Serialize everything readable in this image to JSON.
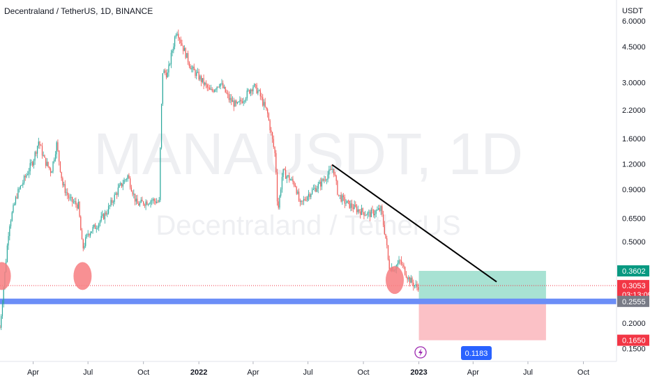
{
  "chart_data": {
    "type": "candlestick",
    "title": "Decentraland / TetherUS, 1D, BINANCE",
    "watermark": {
      "symbol": "MANAUSDT, 1D",
      "name": "Decentraland / TetherUS"
    },
    "y_axis": {
      "unit_label": "USDT",
      "scale": "log",
      "range": [
        0.13,
        7.6
      ],
      "ticks": [
        "6.0000",
        "4.5000",
        "3.0000",
        "2.2000",
        "1.6000",
        "1.2000",
        "0.9000",
        "0.6500",
        "0.5000",
        "0.3602",
        "0.3053",
        "0.2555",
        "0.2000",
        "0.1650",
        "0.1500"
      ]
    },
    "x_axis": {
      "range": [
        "2021-02-05",
        "2023-11-25"
      ],
      "ticks": [
        {
          "label": "Apr",
          "date": "2021-04-01",
          "bold": false
        },
        {
          "label": "Jul",
          "date": "2021-07-01",
          "bold": false
        },
        {
          "label": "Oct",
          "date": "2021-10-01",
          "bold": false
        },
        {
          "label": "2022",
          "date": "2022-01-01",
          "bold": true
        },
        {
          "label": "Apr",
          "date": "2022-04-01",
          "bold": false
        },
        {
          "label": "Jul",
          "date": "2022-07-01",
          "bold": false
        },
        {
          "label": "Oct",
          "date": "2022-10-01",
          "bold": false
        },
        {
          "label": "2023",
          "date": "2023-01-01",
          "bold": true
        },
        {
          "label": "Apr",
          "date": "2023-04-01",
          "bold": false
        },
        {
          "label": "Jul",
          "date": "2023-07-01",
          "bold": false
        },
        {
          "label": "Oct",
          "date": "2023-10-01",
          "bold": false
        }
      ],
      "cursor_label": "0.1183"
    },
    "price_path": [
      [
        "2021-02-05",
        0.19
      ],
      [
        "2021-02-20",
        0.6
      ],
      [
        "2021-03-05",
        0.85
      ],
      [
        "2021-03-20",
        1.05
      ],
      [
        "2021-04-01",
        1.25
      ],
      [
        "2021-04-10",
        1.55
      ],
      [
        "2021-04-20",
        1.25
      ],
      [
        "2021-05-01",
        1.1
      ],
      [
        "2021-05-10",
        1.5
      ],
      [
        "2021-05-20",
        0.95
      ],
      [
        "2021-06-01",
        0.8
      ],
      [
        "2021-06-15",
        0.75
      ],
      [
        "2021-06-22",
        0.46
      ],
      [
        "2021-07-01",
        0.55
      ],
      [
        "2021-07-15",
        0.6
      ],
      [
        "2021-08-01",
        0.7
      ],
      [
        "2021-08-20",
        0.9
      ],
      [
        "2021-09-05",
        1.05
      ],
      [
        "2021-09-20",
        0.76
      ],
      [
        "2021-10-15",
        0.8
      ],
      [
        "2021-10-27",
        0.78
      ],
      [
        "2021-10-30",
        1.9
      ],
      [
        "2021-11-02",
        3.4
      ],
      [
        "2021-11-10",
        3.3
      ],
      [
        "2021-11-25",
        5.5
      ],
      [
        "2021-12-05",
        4.5
      ],
      [
        "2021-12-20",
        3.5
      ],
      [
        "2022-01-01",
        3.2
      ],
      [
        "2022-01-20",
        2.7
      ],
      [
        "2022-02-05",
        3.0
      ],
      [
        "2022-02-20",
        2.5
      ],
      [
        "2022-03-05",
        2.3
      ],
      [
        "2022-03-20",
        2.6
      ],
      [
        "2022-04-01",
        2.9
      ],
      [
        "2022-04-10",
        2.7
      ],
      [
        "2022-04-25",
        2.1
      ],
      [
        "2022-05-08",
        1.3
      ],
      [
        "2022-05-12",
        0.7
      ],
      [
        "2022-05-20",
        1.1
      ],
      [
        "2022-06-10",
        0.95
      ],
      [
        "2022-06-18",
        0.75
      ],
      [
        "2022-07-01",
        0.85
      ],
      [
        "2022-07-20",
        0.95
      ],
      [
        "2022-08-01",
        1.05
      ],
      [
        "2022-08-12",
        1.15
      ],
      [
        "2022-08-20",
        0.85
      ],
      [
        "2022-09-01",
        0.78
      ],
      [
        "2022-09-20",
        0.72
      ],
      [
        "2022-10-10",
        0.68
      ],
      [
        "2022-10-30",
        0.72
      ],
      [
        "2022-11-08",
        0.5
      ],
      [
        "2022-11-12",
        0.38
      ],
      [
        "2022-11-20",
        0.37
      ],
      [
        "2022-12-01",
        0.4
      ],
      [
        "2022-12-15",
        0.33
      ],
      [
        "2022-12-28",
        0.3
      ],
      [
        "2023-01-01",
        0.305
      ]
    ],
    "horizontal_levels": [
      {
        "value": 0.3053,
        "label": "0.3053",
        "countdown": "03:13:09",
        "style": "dotted",
        "color": "#f23645"
      },
      {
        "value": 0.2555,
        "label": "0.2555",
        "style": "band",
        "color": "#6b8ef7"
      }
    ],
    "long_position": {
      "start": "2023-01-01",
      "end": "2023-07-31",
      "entry": 0.2555,
      "target": 0.3602,
      "stop": 0.165,
      "target_label": "0.3602",
      "stop_label": "0.1650",
      "profit_color": "#a8e2d3",
      "loss_color": "#fbc1c6"
    },
    "trendline": {
      "from": [
        "2022-08-10",
        1.19
      ],
      "to": [
        "2023-05-10",
        0.3185
      ],
      "color": "#000000"
    },
    "highlight_circles": [
      {
        "date": "2021-02-08",
        "value": 0.34
      },
      {
        "date": "2021-06-22",
        "value": 0.34
      },
      {
        "date": "2022-11-22",
        "value": 0.325
      }
    ],
    "colors": {
      "up": "#26a69a",
      "down": "#ef5350",
      "target_tag": "#089981",
      "price_tag": "#f23645",
      "level_tag": "#787b86",
      "cursor_tag": "#2962ff",
      "event_icon": "#9c27b0"
    },
    "icons": [
      "lightning-icon"
    ]
  }
}
